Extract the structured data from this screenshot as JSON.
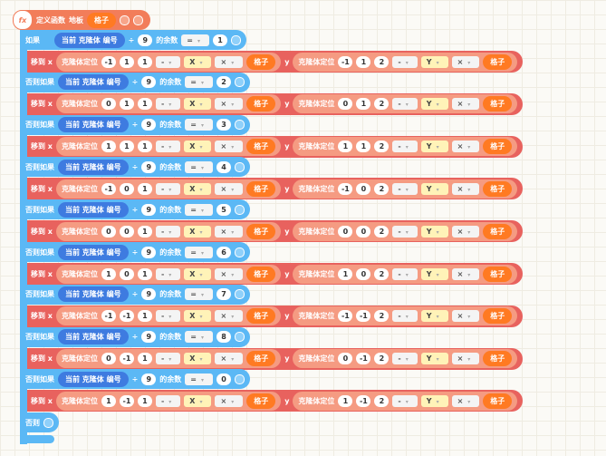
{
  "header": {
    "icon": "fx",
    "label": "定义函数",
    "name": "地板",
    "param": "格子"
  },
  "labels": {
    "if": "如果",
    "else_if": "否则如果",
    "else": "否则",
    "clone_id": "当前 克隆体 编号",
    "divide": "÷",
    "remainder": "的余数",
    "equals": "=",
    "move_x": "移到 x",
    "y": "y",
    "locate": "克隆体定位",
    "minus": "-",
    "axis_x": "X",
    "axis_y": "Y",
    "times": "×",
    "var": "格子"
  },
  "branches": [
    {
      "divisor": 9,
      "remainder": 1,
      "x_args": [
        -1,
        1,
        1
      ],
      "y_args": [
        -1,
        1,
        2
      ]
    },
    {
      "divisor": 9,
      "remainder": 2,
      "x_args": [
        0,
        1,
        1
      ],
      "y_args": [
        0,
        1,
        2
      ]
    },
    {
      "divisor": 9,
      "remainder": 3,
      "x_args": [
        1,
        1,
        1
      ],
      "y_args": [
        1,
        1,
        2
      ]
    },
    {
      "divisor": 9,
      "remainder": 4,
      "x_args": [
        -1,
        0,
        1
      ],
      "y_args": [
        -1,
        0,
        2
      ]
    },
    {
      "divisor": 9,
      "remainder": 5,
      "x_args": [
        0,
        0,
        1
      ],
      "y_args": [
        0,
        0,
        2
      ]
    },
    {
      "divisor": 9,
      "remainder": 6,
      "x_args": [
        1,
        0,
        1
      ],
      "y_args": [
        1,
        0,
        2
      ]
    },
    {
      "divisor": 9,
      "remainder": 7,
      "x_args": [
        -1,
        -1,
        1
      ],
      "y_args": [
        -1,
        -1,
        2
      ]
    },
    {
      "divisor": 9,
      "remainder": 8,
      "x_args": [
        0,
        -1,
        1
      ],
      "y_args": [
        0,
        -1,
        2
      ]
    },
    {
      "divisor": 9,
      "remainder": 0,
      "x_args": [
        1,
        -1,
        1
      ],
      "y_args": [
        1,
        -1,
        2
      ]
    }
  ]
}
